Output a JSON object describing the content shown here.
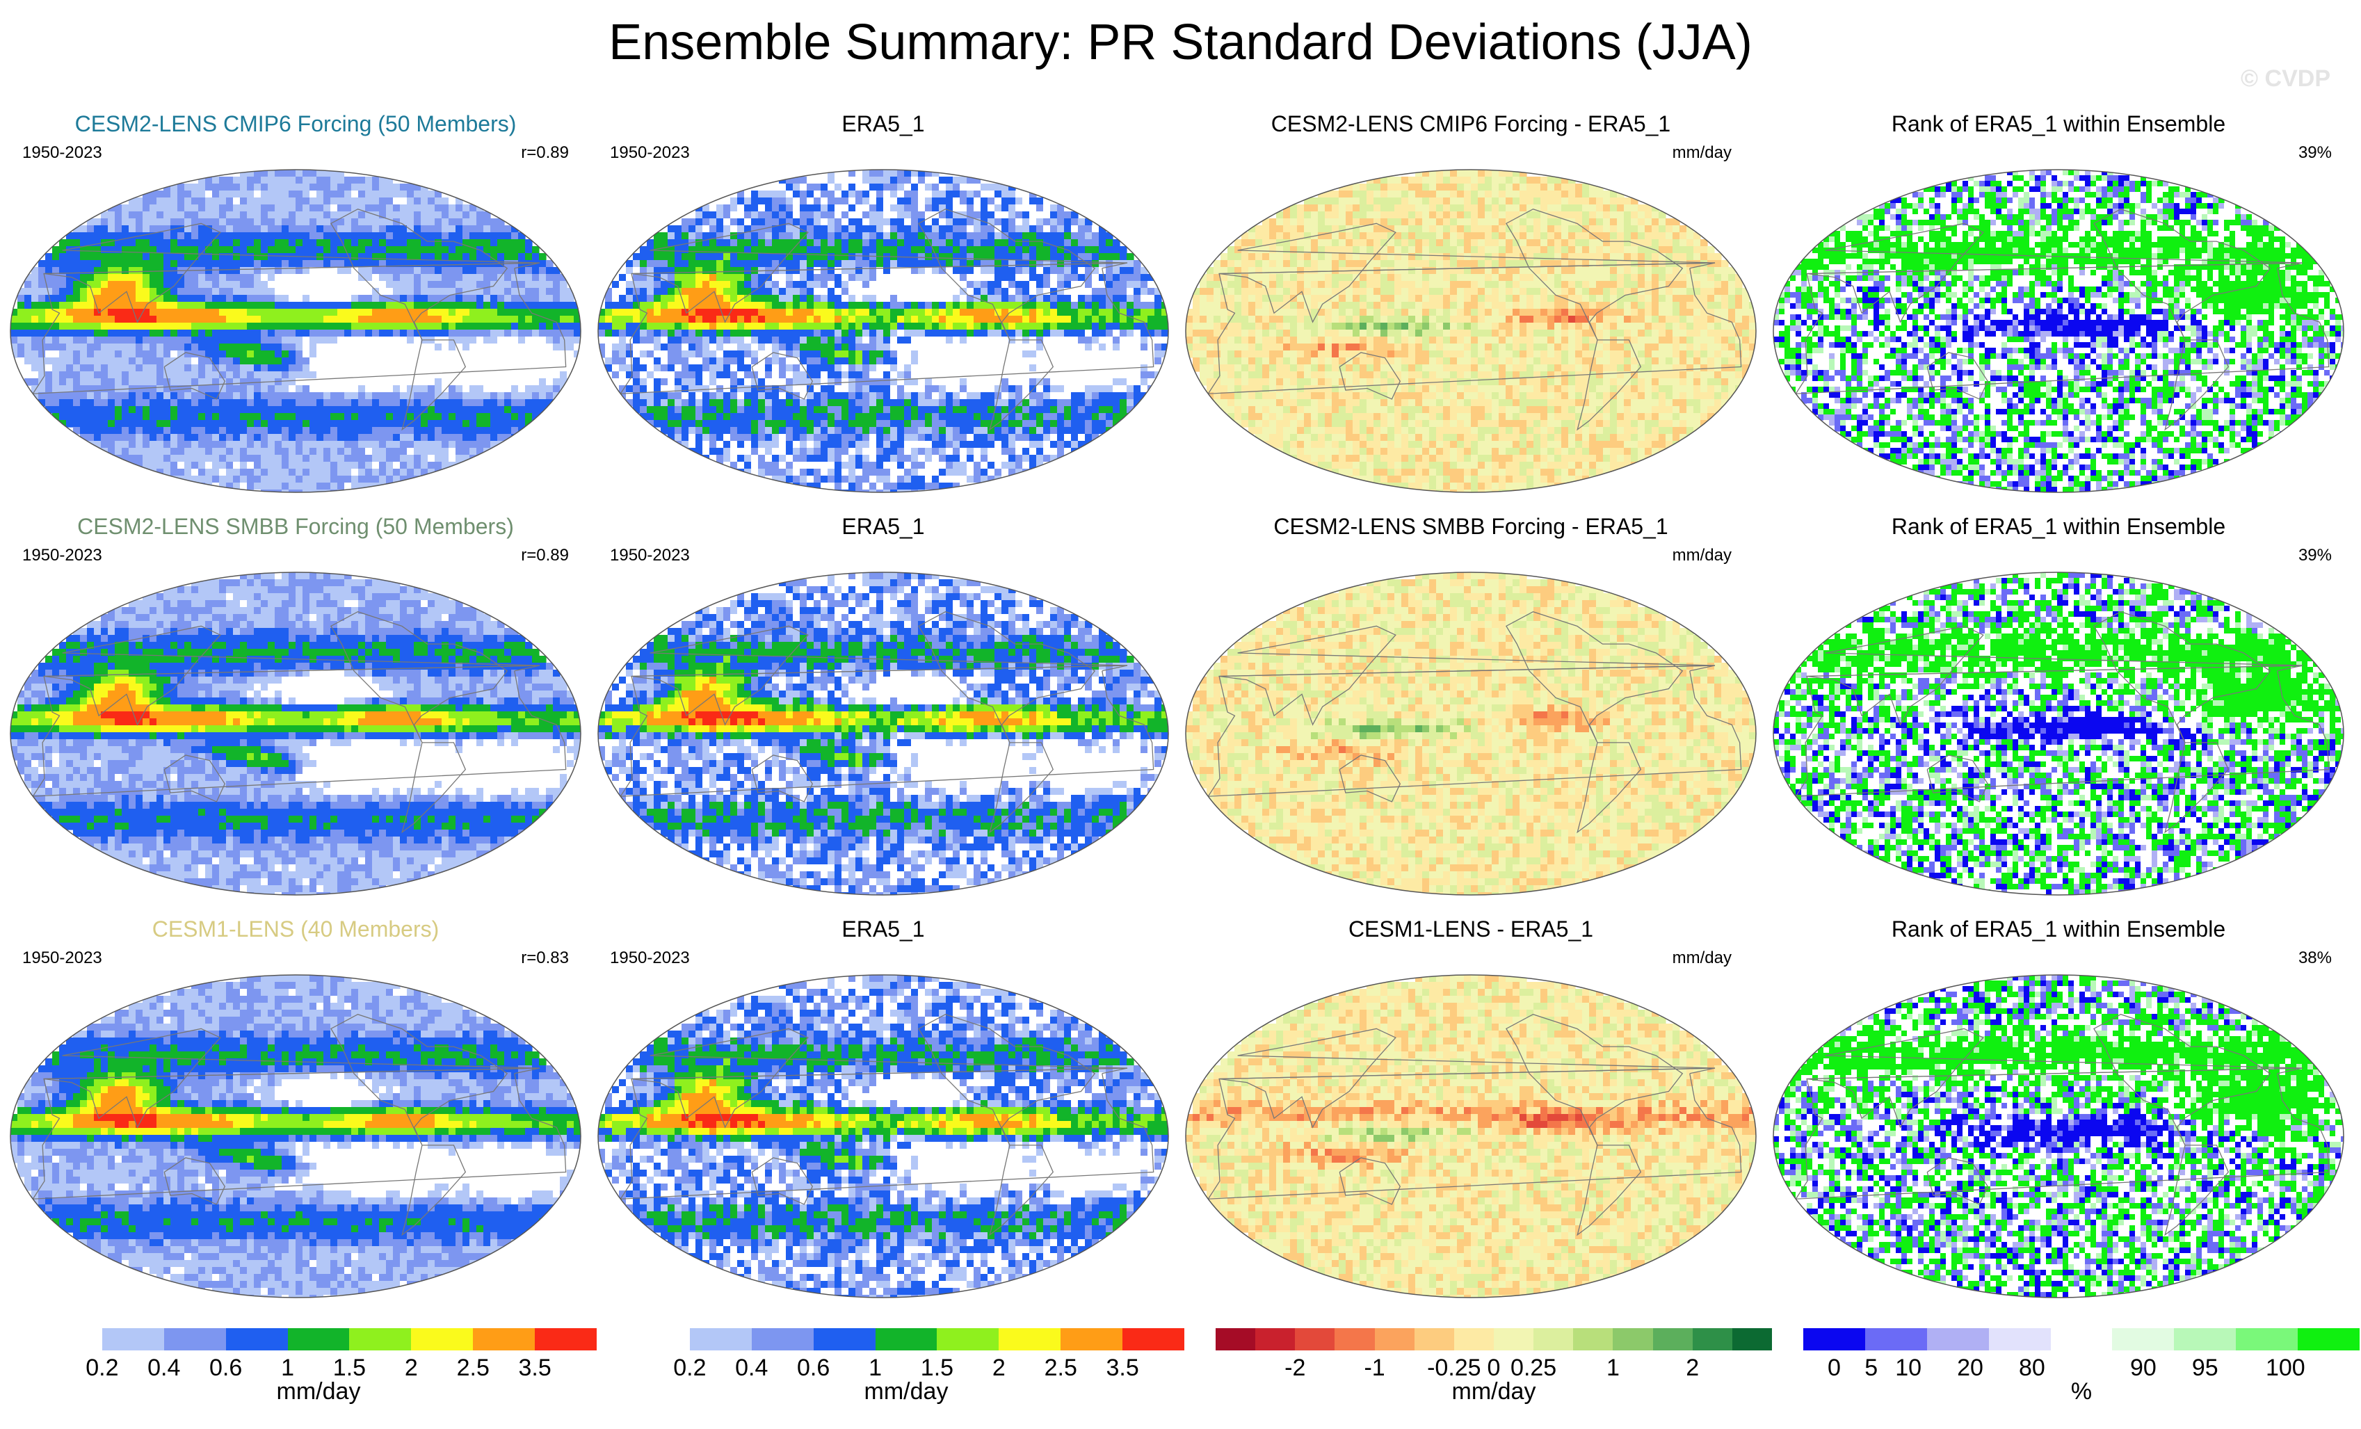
{
  "title": "Ensemble Summary: PR Standard Deviations (JJA)",
  "watermark": "© CVDP",
  "colors": {
    "sd_scale": [
      "#ffffff",
      "#b3c7f7",
      "#7d96f0",
      "#1f5ff0",
      "#12b42a",
      "#8ff01e",
      "#fafa1c",
      "#ff9d16",
      "#fa2a16"
    ],
    "diff_scale": [
      "#a50c26",
      "#c9212d",
      "#e3493a",
      "#f4764a",
      "#fba35d",
      "#fdcc7f",
      "#fdeaa4",
      "#f2f5b3",
      "#dcef9e",
      "#b8df7b",
      "#8cc96a",
      "#5caf5c",
      "#2e9048",
      "#0c6a32"
    ],
    "rank_scale": [
      "#0b07f0",
      "#6b6bf6",
      "#b0b0f4",
      "#e2e2fc",
      "#ffffff",
      "#e2fbe2",
      "#b8f8b8",
      "#7af87a",
      "#10f010"
    ],
    "panel_text_colors": [
      "#1d7a99",
      "#6f8f6f",
      "#d7cb82"
    ]
  },
  "rows": [
    {
      "model": {
        "title": "CESM2-LENS CMIP6 Forcing (50 Members)",
        "period": "1950-2023",
        "corr": "r=0.89"
      },
      "obs": {
        "title": "ERA5_1",
        "period": "1950-2023"
      },
      "diff": {
        "title": "CESM2-LENS CMIP6 Forcing - ERA5_1",
        "units": "mm/day"
      },
      "rank": {
        "title": "Rank of ERA5_1 within Ensemble",
        "pct": "39%"
      }
    },
    {
      "model": {
        "title": "CESM2-LENS SMBB Forcing (50 Members)",
        "period": "1950-2023",
        "corr": "r=0.89"
      },
      "obs": {
        "title": "ERA5_1",
        "period": "1950-2023"
      },
      "diff": {
        "title": "CESM2-LENS SMBB Forcing - ERA5_1",
        "units": "mm/day"
      },
      "rank": {
        "title": "Rank of ERA5_1 within Ensemble",
        "pct": "39%"
      }
    },
    {
      "model": {
        "title": "CESM1-LENS (40 Members)",
        "period": "1950-2023",
        "corr": "r=0.83"
      },
      "obs": {
        "title": "ERA5_1",
        "period": "1950-2023"
      },
      "diff": {
        "title": "CESM1-LENS - ERA5_1",
        "units": "mm/day"
      },
      "rank": {
        "title": "Rank of ERA5_1 within Ensemble",
        "pct": "38%"
      }
    }
  ],
  "colorbars": {
    "sd_model": {
      "ticks": [
        "0.2",
        "0.4",
        "0.6",
        "1",
        "1.5",
        "2",
        "2.5",
        "3.5"
      ],
      "label": "mm/day"
    },
    "sd_obs": {
      "ticks": [
        "0.2",
        "0.4",
        "0.6",
        "1",
        "1.5",
        "2",
        "2.5",
        "3.5"
      ],
      "label": "mm/day"
    },
    "diff": {
      "ticks": [
        "-2",
        "-1",
        "-0.25",
        "0",
        "0.25",
        "1",
        "2"
      ],
      "label": "mm/day"
    },
    "rank": {
      "ticks": [
        "0",
        "5",
        "10",
        "20",
        "80",
        "90",
        "95",
        "100"
      ],
      "label": "%"
    }
  },
  "chart_data": [
    {
      "type": "heatmap",
      "title": "CESM2-LENS CMIP6 Forcing (50 Members)",
      "xlabel": "",
      "ylabel": "",
      "period": "1950-2023",
      "pattern_correlation": 0.89,
      "levels": [
        0.2,
        0.4,
        0.6,
        1,
        1.5,
        2,
        2.5,
        3.5
      ],
      "units": "mm/day"
    },
    {
      "type": "heatmap",
      "title": "ERA5_1",
      "period": "1950-2023",
      "levels": [
        0.2,
        0.4,
        0.6,
        1,
        1.5,
        2,
        2.5,
        3.5
      ],
      "units": "mm/day"
    },
    {
      "type": "heatmap",
      "title": "CESM2-LENS CMIP6 Forcing - ERA5_1",
      "levels": [
        -2,
        -1,
        -0.25,
        0,
        0.25,
        1,
        2
      ],
      "units": "mm/day"
    },
    {
      "type": "heatmap",
      "title": "Rank of ERA5_1 within Ensemble",
      "levels": [
        0,
        5,
        10,
        20,
        80,
        90,
        95,
        100
      ],
      "units": "%",
      "summary_percent": 39
    },
    {
      "type": "heatmap",
      "title": "CESM2-LENS SMBB Forcing (50 Members)",
      "period": "1950-2023",
      "pattern_correlation": 0.89,
      "levels": [
        0.2,
        0.4,
        0.6,
        1,
        1.5,
        2,
        2.5,
        3.5
      ],
      "units": "mm/day"
    },
    {
      "type": "heatmap",
      "title": "ERA5_1",
      "period": "1950-2023",
      "levels": [
        0.2,
        0.4,
        0.6,
        1,
        1.5,
        2,
        2.5,
        3.5
      ],
      "units": "mm/day"
    },
    {
      "type": "heatmap",
      "title": "CESM2-LENS SMBB Forcing - ERA5_1",
      "levels": [
        -2,
        -1,
        -0.25,
        0,
        0.25,
        1,
        2
      ],
      "units": "mm/day"
    },
    {
      "type": "heatmap",
      "title": "Rank of ERA5_1 within Ensemble",
      "levels": [
        0,
        5,
        10,
        20,
        80,
        90,
        95,
        100
      ],
      "units": "%",
      "summary_percent": 39
    },
    {
      "type": "heatmap",
      "title": "CESM1-LENS (40 Members)",
      "period": "1950-2023",
      "pattern_correlation": 0.83,
      "levels": [
        0.2,
        0.4,
        0.6,
        1,
        1.5,
        2,
        2.5,
        3.5
      ],
      "units": "mm/day"
    },
    {
      "type": "heatmap",
      "title": "ERA5_1",
      "period": "1950-2023",
      "levels": [
        0.2,
        0.4,
        0.6,
        1,
        1.5,
        2,
        2.5,
        3.5
      ],
      "units": "mm/day"
    },
    {
      "type": "heatmap",
      "title": "CESM1-LENS - ERA5_1",
      "levels": [
        -2,
        -1,
        -0.25,
        0,
        0.25,
        1,
        2
      ],
      "units": "mm/day"
    },
    {
      "type": "heatmap",
      "title": "Rank of ERA5_1 within Ensemble",
      "levels": [
        0,
        5,
        10,
        20,
        80,
        90,
        95,
        100
      ],
      "units": "%",
      "summary_percent": 38
    }
  ]
}
